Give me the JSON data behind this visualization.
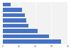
{
  "values": [
    72,
    57,
    43,
    32,
    29,
    27,
    24,
    10
  ],
  "bar_color": "#4472c4",
  "background_color": "#ffffff",
  "plot_bg_color": "#f2f2f2",
  "xlim": [
    0,
    80
  ],
  "xticks": [
    0,
    20,
    40,
    60,
    80
  ],
  "grid_color": "#ffffff",
  "bar_height": 0.7
}
